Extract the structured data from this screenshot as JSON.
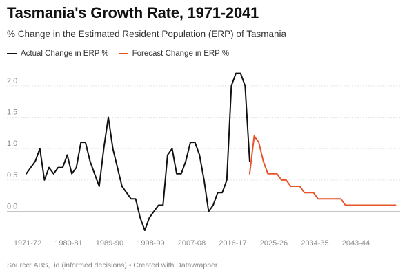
{
  "title": "Tasmania's Growth Rate, 1971-2041",
  "subtitle": "% Change in the Estimated Resident Population (ERP) of Tasmania",
  "footer": "Source: ABS, .id (informed decisions) • Created with Datawrapper",
  "colors": {
    "actual": "#111111",
    "forecast": "#e8542a",
    "grid": "#e5e5e5",
    "zero": "#bbbbbb"
  },
  "chart_data": {
    "type": "line",
    "title": "Tasmania's Growth Rate, 1971-2041",
    "subtitle": "% Change in the Estimated Resident Population (ERP) of Tasmania",
    "ylim": [
      -0.3,
      2.25
    ],
    "yticks": [
      "0.0",
      "0.5",
      "1.0",
      "1.5",
      "2.0"
    ],
    "ytick_values": [
      0,
      0.5,
      1.0,
      1.5,
      2.0
    ],
    "xticks": [
      "1971-72",
      "1980-81",
      "1989-90",
      "1998-99",
      "2007-08",
      "2016-17",
      "2025-26",
      "2034-35",
      "2043-44"
    ],
    "xtick_values": [
      1971,
      1980,
      1989,
      1998,
      2007,
      2016,
      2025,
      2034,
      2043
    ],
    "xlim": [
      1971,
      2053
    ],
    "grid": true,
    "legend_position": "top-left",
    "series": [
      {
        "name": "Actual Change in ERP %",
        "x": [
          1971,
          1972,
          1973,
          1974,
          1975,
          1976,
          1977,
          1978,
          1979,
          1980,
          1981,
          1982,
          1983,
          1984,
          1985,
          1986,
          1987,
          1988,
          1989,
          1990,
          1991,
          1992,
          1993,
          1994,
          1995,
          1996,
          1997,
          1998,
          1999,
          2000,
          2001,
          2002,
          2003,
          2004,
          2005,
          2006,
          2007,
          2008,
          2009,
          2010,
          2011,
          2012,
          2013,
          2014,
          2015,
          2016,
          2017,
          2018,
          2019,
          2020
        ],
        "values": [
          0.6,
          0.7,
          0.8,
          1.0,
          0.5,
          0.7,
          0.6,
          0.7,
          0.7,
          0.9,
          0.6,
          0.7,
          1.1,
          1.1,
          0.8,
          0.6,
          0.4,
          1.0,
          1.5,
          1.0,
          0.7,
          0.4,
          0.3,
          0.2,
          0.2,
          -0.1,
          -0.3,
          -0.1,
          0.0,
          0.1,
          0.1,
          0.9,
          1.0,
          0.6,
          0.6,
          0.8,
          1.1,
          1.1,
          0.9,
          0.5,
          0.0,
          0.1,
          0.3,
          0.3,
          0.5,
          2.0,
          2.2,
          2.2,
          2.0,
          0.8
        ]
      },
      {
        "name": "Forecast Change in ERP %",
        "x": [
          2020,
          2021,
          2022,
          2023,
          2024,
          2025,
          2026,
          2027,
          2028,
          2029,
          2030,
          2031,
          2032,
          2033,
          2034,
          2035,
          2036,
          2037,
          2038,
          2039,
          2040,
          2041,
          2042,
          2043,
          2044,
          2045,
          2046,
          2047,
          2048,
          2049,
          2050,
          2051,
          2052
        ],
        "values": [
          0.6,
          1.2,
          1.1,
          0.8,
          0.6,
          0.6,
          0.6,
          0.5,
          0.5,
          0.4,
          0.4,
          0.4,
          0.3,
          0.3,
          0.3,
          0.2,
          0.2,
          0.2,
          0.2,
          0.2,
          0.2,
          0.1,
          0.1,
          0.1,
          0.1,
          0.1,
          0.1,
          0.1,
          0.1,
          0.1,
          0.1,
          0.1,
          0.1
        ]
      }
    ]
  }
}
